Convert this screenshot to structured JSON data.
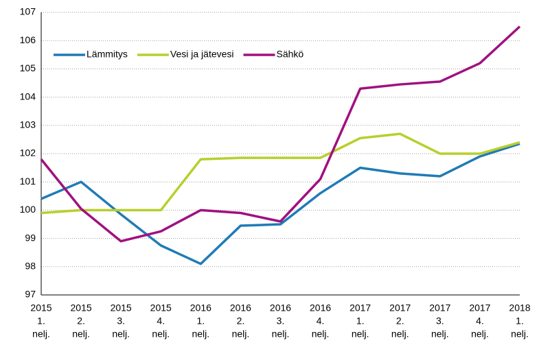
{
  "chart_data": {
    "type": "line",
    "categories": [
      [
        "2015",
        "1.",
        "nelj."
      ],
      [
        "2015",
        "2.",
        "nelj."
      ],
      [
        "2015",
        "3.",
        "nelj."
      ],
      [
        "2015",
        "4.",
        "nelj."
      ],
      [
        "2016",
        "1.",
        "nelj."
      ],
      [
        "2016",
        "2.",
        "nelj."
      ],
      [
        "2016",
        "3.",
        "nelj."
      ],
      [
        "2016",
        "4.",
        "nelj."
      ],
      [
        "2017",
        "1.",
        "nelj."
      ],
      [
        "2017",
        "2.",
        "nelj."
      ],
      [
        "2017",
        "3.",
        "nelj."
      ],
      [
        "2017",
        "4.",
        "nelj."
      ],
      [
        "2018",
        "1.",
        "nelj."
      ]
    ],
    "series": [
      {
        "name": "Lämmitys",
        "color": "#1f7bb6",
        "values": [
          100.4,
          101.0,
          99.85,
          98.75,
          98.1,
          99.45,
          99.5,
          100.6,
          101.5,
          101.3,
          101.2,
          101.9,
          102.35
        ]
      },
      {
        "name": "Vesi ja jätevesi",
        "color": "#b8cf2c",
        "values": [
          99.9,
          100.0,
          100.0,
          100.0,
          101.8,
          101.85,
          101.85,
          101.85,
          102.55,
          102.7,
          102.0,
          102.0,
          102.4
        ]
      },
      {
        "name": "Sähkö",
        "color": "#a0117f",
        "values": [
          101.8,
          100.05,
          98.9,
          99.25,
          100.0,
          99.9,
          99.6,
          101.1,
          104.3,
          104.45,
          104.55,
          105.2,
          106.5
        ]
      }
    ],
    "ylim": [
      97,
      107
    ],
    "yticks": [
      97,
      98,
      99,
      100,
      101,
      102,
      103,
      104,
      105,
      106,
      107
    ],
    "grid": true,
    "legend": "upper left"
  }
}
